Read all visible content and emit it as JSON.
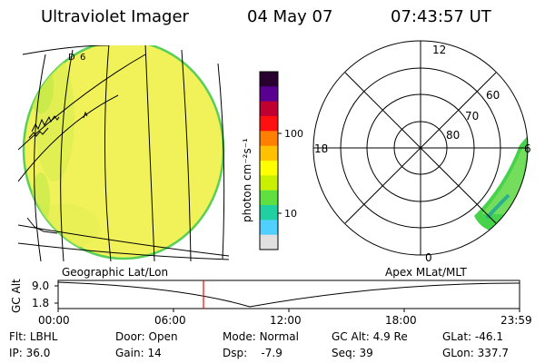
{
  "header": {
    "title": "Ultraviolet Imager",
    "date": "04 May 07",
    "time": "07:43:57 UT"
  },
  "colorbar": {
    "label": "photon cm⁻²s⁻¹",
    "tick_100": "100",
    "tick_10": "10",
    "colors": [
      "#2a0030",
      "#5a0090",
      "#c00030",
      "#ff1010",
      "#ff8000",
      "#ffc000",
      "#ffff00",
      "#c8f000",
      "#60e040",
      "#20d0a0",
      "#50d0ff",
      "#e0e0e0"
    ]
  },
  "polar": {
    "mlt_labels": {
      "top": "12",
      "left": "18",
      "right": "6",
      "bottom": "0"
    },
    "lat_labels": [
      "60",
      "70",
      "80"
    ]
  },
  "globe": {
    "labels": [
      "D",
      "6"
    ]
  },
  "timeline": {
    "left_label": "Geographic Lat/Lon",
    "right_label": "Apex MLat/MLT",
    "axis_label": "GC Alt",
    "y_ticks": [
      "9.0",
      "1.8"
    ],
    "x_ticks": [
      "00:00",
      "06:00",
      "12:00",
      "18:00",
      "23:59"
    ],
    "marker_color": "#ff0000"
  },
  "status": {
    "row1": [
      {
        "key": "Flt:",
        "value": "LBHL"
      },
      {
        "key": "Door:",
        "value": "Open"
      },
      {
        "key": "Mode:",
        "value": "Normal"
      },
      {
        "key": "GC Alt:",
        "value": "4.9 Re"
      },
      {
        "key": "GLat:",
        "value": "-46.1"
      }
    ],
    "row2": [
      {
        "key": "IP:",
        "value": "36.0"
      },
      {
        "key": "Gain:",
        "value": "14"
      },
      {
        "key": "Dsp:",
        "value": "-7.9"
      },
      {
        "key": "Seq:",
        "value": "39"
      },
      {
        "key": "GLon:",
        "value": "337.7"
      }
    ]
  }
}
